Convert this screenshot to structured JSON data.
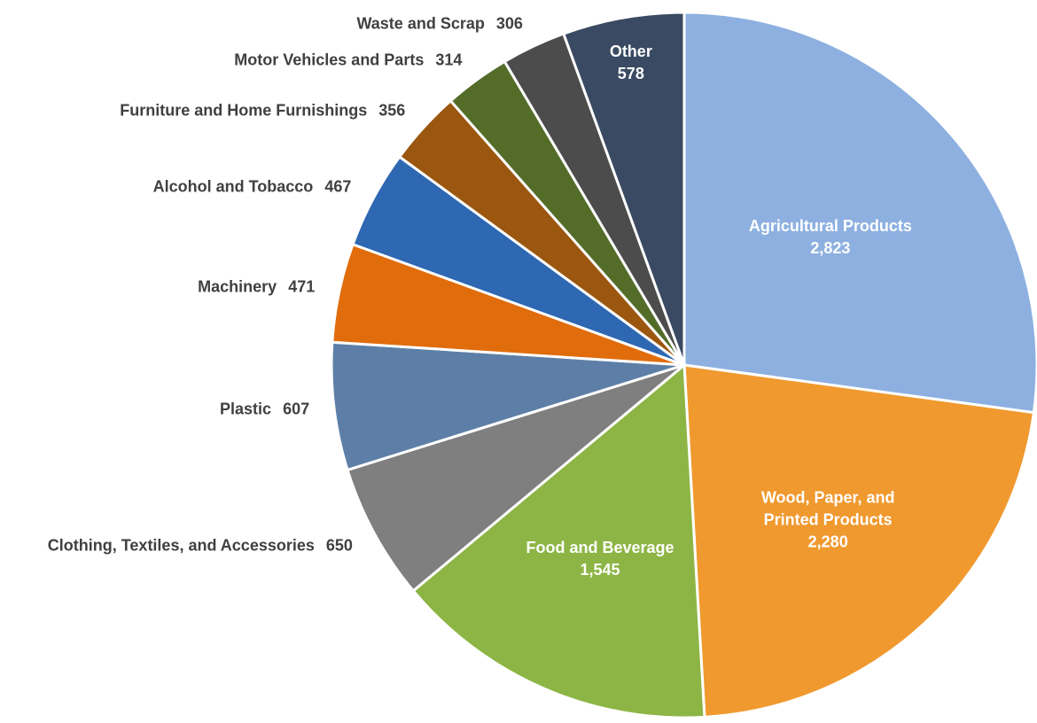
{
  "chart_data": {
    "type": "pie",
    "categories": [
      "Agricultural Products",
      "Wood, Paper, and Printed Products",
      "Food and Beverage",
      "Clothing, Textiles, and Accessories",
      "Plastic",
      "Machinery",
      "Alcohol and Tobacco",
      "Furniture and Home Furnishings",
      "Motor Vehicles and Parts",
      "Waste and Scrap",
      "Other"
    ],
    "values": [
      2823,
      2280,
      1545,
      650,
      607,
      471,
      467,
      356,
      314,
      306,
      578
    ],
    "value_labels": [
      "2,823",
      "2,280",
      "1,545",
      "650",
      "607",
      "471",
      "467",
      "356",
      "314",
      "306",
      "578"
    ],
    "colors": [
      "#8db0e0",
      "#f0992e",
      "#8db545",
      "#7f7f7f",
      "#5d7fa7",
      "#e06c0b",
      "#2e67b2",
      "#9b570f",
      "#536d29",
      "#4c4c4c",
      "#3a4a62"
    ]
  }
}
